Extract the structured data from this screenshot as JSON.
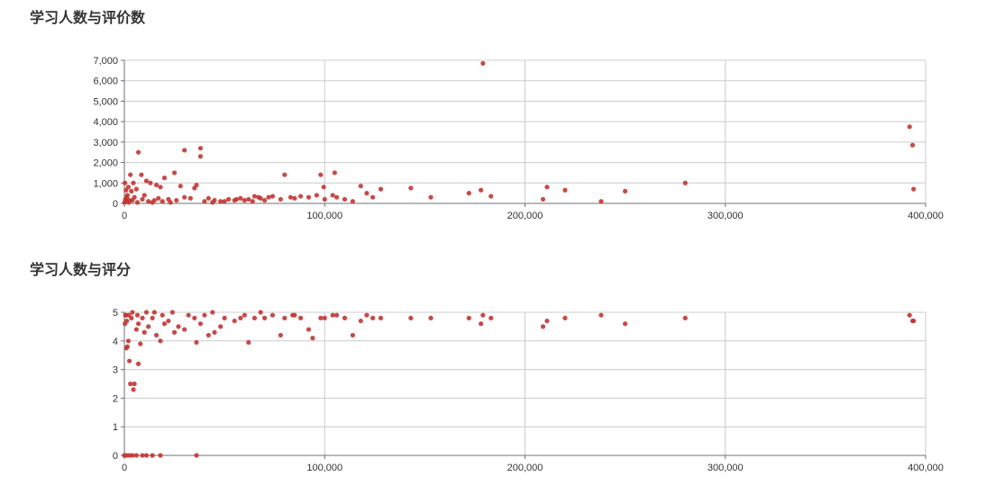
{
  "colors": {
    "point": "#c23531",
    "grid": "#cccccc",
    "axis": "#6e7079",
    "title": "#333333",
    "tick_text": "#333333"
  },
  "chart_data": [
    {
      "type": "scatter",
      "title": "学习人数与评价数",
      "xlabel": "",
      "ylabel": "",
      "xlim": [
        0,
        400000
      ],
      "ylim": [
        0,
        7000
      ],
      "x_ticks": [
        0,
        100000,
        200000,
        300000,
        400000
      ],
      "x_tick_labels": [
        "0",
        "100,000",
        "200,000",
        "300,000",
        "400,000"
      ],
      "y_ticks": [
        0,
        1000,
        2000,
        3000,
        4000,
        5000,
        6000,
        7000
      ],
      "y_tick_labels": [
        "0",
        "1,000",
        "2,000",
        "3,000",
        "4,000",
        "5,000",
        "6,000",
        "7,000"
      ],
      "grid": true,
      "series": [
        {
          "points": [
            [
              179000,
              6850
            ],
            [
              392000,
              3750
            ],
            [
              393500,
              2850
            ],
            [
              394000,
              700
            ],
            [
              280000,
              1000
            ],
            [
              250000,
              600
            ],
            [
              238000,
              100
            ],
            [
              220000,
              650
            ],
            [
              211000,
              800
            ],
            [
              209000,
              200
            ],
            [
              183000,
              350
            ],
            [
              178000,
              650
            ],
            [
              172000,
              500
            ],
            [
              153000,
              300
            ],
            [
              143000,
              750
            ],
            [
              128000,
              700
            ],
            [
              124000,
              300
            ],
            [
              121000,
              500
            ],
            [
              118000,
              850
            ],
            [
              114000,
              100
            ],
            [
              110000,
              200
            ],
            [
              106000,
              300
            ],
            [
              105000,
              1500
            ],
            [
              104000,
              400
            ],
            [
              100000,
              200
            ],
            [
              99500,
              800
            ],
            [
              98000,
              1400
            ],
            [
              96000,
              400
            ],
            [
              92000,
              300
            ],
            [
              88000,
              350
            ],
            [
              85000,
              250
            ],
            [
              83000,
              300
            ],
            [
              80000,
              1400
            ],
            [
              78000,
              200
            ],
            [
              74000,
              350
            ],
            [
              72000,
              300
            ],
            [
              70000,
              150
            ],
            [
              67000,
              300
            ],
            [
              65000,
              350
            ],
            [
              62000,
              200
            ],
            [
              58000,
              250
            ],
            [
              55000,
              150
            ],
            [
              52000,
              200
            ],
            [
              48000,
              100
            ],
            [
              45000,
              150
            ],
            [
              42000,
              250
            ],
            [
              38000,
              2700
            ],
            [
              38000,
              2300
            ],
            [
              36000,
              900
            ],
            [
              35000,
              750
            ],
            [
              33000,
              250
            ],
            [
              30000,
              2600
            ],
            [
              30000,
              300
            ],
            [
              28000,
              850
            ],
            [
              25000,
              1500
            ],
            [
              22000,
              200
            ],
            [
              20000,
              1250
            ],
            [
              18000,
              800
            ],
            [
              16000,
              900
            ],
            [
              15000,
              150
            ],
            [
              13000,
              1000
            ],
            [
              11000,
              1100
            ],
            [
              10000,
              400
            ],
            [
              8500,
              1400
            ],
            [
              7000,
              2500
            ],
            [
              6000,
              700
            ],
            [
              5000,
              300
            ],
            [
              4500,
              1000
            ],
            [
              3500,
              600
            ],
            [
              3000,
              1400
            ],
            [
              2500,
              150
            ],
            [
              2000,
              800
            ],
            [
              1500,
              400
            ],
            [
              1000,
              100
            ],
            [
              800,
              650
            ],
            [
              500,
              200
            ],
            [
              300,
              1000
            ],
            [
              100,
              50
            ],
            [
              1200,
              300
            ],
            [
              2200,
              50
            ],
            [
              4000,
              150
            ],
            [
              6500,
              50
            ],
            [
              9000,
              200
            ],
            [
              12000,
              100
            ],
            [
              14000,
              50
            ],
            [
              17000,
              250
            ],
            [
              19000,
              100
            ],
            [
              23000,
              50
            ],
            [
              26000,
              150
            ],
            [
              40000,
              100
            ],
            [
              44000,
              50
            ],
            [
              50000,
              100
            ],
            [
              56000,
              200
            ],
            [
              60000,
              150
            ],
            [
              64000,
              100
            ],
            [
              68000,
              250
            ]
          ]
        }
      ]
    },
    {
      "type": "scatter",
      "title": "学习人数与评分",
      "xlabel": "",
      "ylabel": "",
      "xlim": [
        0,
        400000
      ],
      "ylim": [
        0,
        5
      ],
      "x_ticks": [
        0,
        100000,
        200000,
        300000,
        400000
      ],
      "x_tick_labels": [
        "0",
        "100,000",
        "200,000",
        "300,000",
        "400,000"
      ],
      "y_ticks": [
        0,
        1,
        2,
        3,
        4,
        5
      ],
      "y_tick_labels": [
        "0",
        "1",
        "2",
        "3",
        "4",
        "5"
      ],
      "grid": true,
      "series": [
        {
          "points": [
            [
              392000,
              4.9
            ],
            [
              393500,
              4.7
            ],
            [
              394000,
              4.7
            ],
            [
              280000,
              4.8
            ],
            [
              250000,
              4.6
            ],
            [
              238000,
              4.9
            ],
            [
              220000,
              4.8
            ],
            [
              211000,
              4.7
            ],
            [
              209000,
              4.5
            ],
            [
              183000,
              4.8
            ],
            [
              179000,
              4.9
            ],
            [
              178000,
              4.6
            ],
            [
              172000,
              4.8
            ],
            [
              153000,
              4.8
            ],
            [
              143000,
              4.8
            ],
            [
              128000,
              4.8
            ],
            [
              124000,
              4.8
            ],
            [
              121000,
              4.9
            ],
            [
              118000,
              4.7
            ],
            [
              114000,
              4.2
            ],
            [
              110000,
              4.8
            ],
            [
              106000,
              4.9
            ],
            [
              104000,
              4.9
            ],
            [
              100000,
              4.8
            ],
            [
              98000,
              4.8
            ],
            [
              94000,
              4.1
            ],
            [
              92000,
              4.4
            ],
            [
              88000,
              4.8
            ],
            [
              85000,
              4.9
            ],
            [
              80000,
              4.8
            ],
            [
              78000,
              4.2
            ],
            [
              74000,
              4.9
            ],
            [
              70000,
              4.8
            ],
            [
              65000,
              4.8
            ],
            [
              62000,
              3.95
            ],
            [
              58000,
              4.8
            ],
            [
              55000,
              4.7
            ],
            [
              50000,
              4.8
            ],
            [
              48000,
              4.5
            ],
            [
              45000,
              4.3
            ],
            [
              42000,
              4.2
            ],
            [
              38000,
              4.6
            ],
            [
              36000,
              3.95
            ],
            [
              35000,
              4.8
            ],
            [
              32000,
              4.9
            ],
            [
              30000,
              4.4
            ],
            [
              27000,
              4.5
            ],
            [
              25000,
              4.3
            ],
            [
              22000,
              4.7
            ],
            [
              20000,
              4.6
            ],
            [
              18000,
              4.0
            ],
            [
              16000,
              4.2
            ],
            [
              14000,
              4.8
            ],
            [
              12000,
              4.5
            ],
            [
              10000,
              4.3
            ],
            [
              9000,
              4.8
            ],
            [
              8000,
              3.9
            ],
            [
              7000,
              4.6
            ],
            [
              6000,
              4.4
            ],
            [
              5000,
              2.5
            ],
            [
              4500,
              2.3
            ],
            [
              3000,
              2.5
            ],
            [
              7000,
              3.2
            ],
            [
              2500,
              3.3
            ],
            [
              2000,
              4.0
            ],
            [
              1500,
              3.8
            ],
            [
              1000,
              3.75
            ],
            [
              500,
              4.9
            ],
            [
              300,
              4.6
            ],
            [
              800,
              4.9
            ],
            [
              1200,
              4.7
            ],
            [
              2200,
              4.9
            ],
            [
              3500,
              4.8
            ],
            [
              4000,
              5.0
            ],
            [
              6500,
              4.9
            ],
            [
              11000,
              5.0
            ],
            [
              15000,
              5.0
            ],
            [
              19000,
              4.9
            ],
            [
              24000,
              5.0
            ],
            [
              40000,
              4.9
            ],
            [
              44000,
              5.0
            ],
            [
              60000,
              4.9
            ],
            [
              68000,
              5.0
            ],
            [
              84000,
              4.9
            ],
            [
              0,
              0
            ],
            [
              1000,
              0
            ],
            [
              2500,
              0
            ],
            [
              4000,
              0
            ],
            [
              6000,
              0
            ],
            [
              9000,
              0
            ],
            [
              11000,
              0
            ],
            [
              14000,
              0
            ],
            [
              18000,
              0
            ],
            [
              36000,
              0
            ]
          ]
        }
      ]
    }
  ]
}
